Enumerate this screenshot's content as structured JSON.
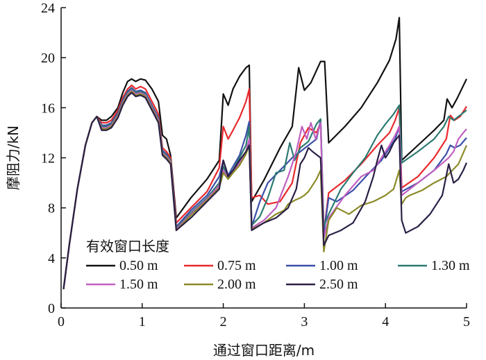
{
  "chart_data": {
    "type": "line",
    "xlabel": "通过窗口距离/m",
    "ylabel": "摩阻力/kN",
    "xlim": [
      0,
      5
    ],
    "ylim": [
      0,
      24
    ],
    "xticks": [
      "0",
      "1",
      "2",
      "3",
      "4",
      "5"
    ],
    "yticks": [
      "0",
      "4",
      "8",
      "12",
      "16",
      "20",
      "24"
    ],
    "grid": false,
    "legend": {
      "title": "有效窗口长度",
      "placement": "bottom-center",
      "columns": 4
    },
    "series": [
      {
        "name": "0.50 m",
        "color": "#111111",
        "x": [
          0.03,
          0.1,
          0.2,
          0.3,
          0.38,
          0.44,
          0.5,
          0.56,
          0.62,
          0.7,
          0.76,
          0.82,
          0.87,
          0.92,
          0.98,
          1.04,
          1.12,
          1.2,
          1.25,
          1.3,
          1.35,
          1.42,
          1.6,
          1.8,
          1.95,
          2.0,
          2.06,
          2.12,
          2.2,
          2.28,
          2.32,
          2.35,
          2.5,
          2.7,
          2.85,
          2.93,
          3.0,
          3.08,
          3.2,
          3.25,
          3.3,
          3.5,
          3.7,
          3.9,
          4.05,
          4.13,
          4.17,
          4.2,
          4.4,
          4.6,
          4.72,
          4.76,
          4.82,
          4.88,
          4.94,
          5.0
        ],
        "y": [
          1.5,
          5,
          9.5,
          13,
          14.8,
          15.3,
          15,
          15,
          15.3,
          16,
          17.2,
          18.1,
          18.3,
          18.1,
          18.3,
          18.2,
          17.5,
          16.5,
          13.8,
          13.5,
          12.2,
          7.2,
          8.8,
          10.3,
          11.8,
          17.1,
          16.2,
          17.5,
          18.5,
          19.2,
          19.4,
          8.5,
          10.2,
          12.8,
          14.5,
          19.2,
          17.4,
          18,
          19.7,
          19.7,
          13.2,
          14.5,
          16,
          18,
          19.8,
          21.5,
          23.2,
          11.8,
          13,
          14.2,
          15,
          16.7,
          16,
          16.7,
          17.5,
          18.3
        ]
      },
      {
        "name": "0.75 m",
        "color": "#e8292c",
        "x": [
          0.03,
          0.1,
          0.2,
          0.3,
          0.38,
          0.44,
          0.5,
          0.56,
          0.62,
          0.7,
          0.76,
          0.82,
          0.87,
          0.92,
          0.98,
          1.04,
          1.12,
          1.2,
          1.25,
          1.3,
          1.35,
          1.42,
          1.6,
          1.8,
          1.95,
          2.0,
          2.06,
          2.12,
          2.2,
          2.28,
          2.32,
          2.35,
          2.45,
          2.55,
          2.7,
          2.85,
          2.95,
          3.05,
          3.15,
          3.2,
          3.24,
          3.3,
          3.5,
          3.7,
          3.9,
          4.05,
          4.12,
          4.17,
          4.2,
          4.4,
          4.6,
          4.75,
          4.8,
          4.85,
          4.92,
          5.0
        ],
        "y": [
          1.5,
          5,
          9.5,
          13,
          14.8,
          15.3,
          14.8,
          14.8,
          15,
          15.8,
          16.8,
          17.5,
          17.8,
          17.5,
          17.7,
          17.5,
          16.5,
          15.5,
          12.8,
          12.5,
          12,
          6.8,
          8,
          9.3,
          11.2,
          14.5,
          13.5,
          14.2,
          15.2,
          16.5,
          17.5,
          8.8,
          9,
          8.3,
          8.5,
          10,
          13.2,
          14.4,
          14,
          14.8,
          6,
          9.2,
          10.2,
          11.5,
          13,
          14,
          15,
          16,
          9.6,
          10.5,
          12,
          13.5,
          15.4,
          15,
          15.3,
          16.1
        ]
      },
      {
        "name": "1.00 m",
        "color": "#3a4ea8",
        "x": [
          0.03,
          0.1,
          0.2,
          0.3,
          0.38,
          0.44,
          0.5,
          0.56,
          0.62,
          0.7,
          0.76,
          0.82,
          0.87,
          0.92,
          0.98,
          1.04,
          1.12,
          1.2,
          1.25,
          1.3,
          1.35,
          1.42,
          1.6,
          1.8,
          1.95,
          2.0,
          2.06,
          2.12,
          2.2,
          2.28,
          2.32,
          2.35,
          2.45,
          2.55,
          2.7,
          2.85,
          2.95,
          3.05,
          3.15,
          3.2,
          3.24,
          3.3,
          3.4,
          3.6,
          3.8,
          3.95,
          4.05,
          4.12,
          4.17,
          4.2,
          4.4,
          4.6,
          4.75,
          4.8,
          4.85,
          4.92,
          5.0
        ],
        "y": [
          1.5,
          5,
          9.5,
          13,
          14.8,
          15.3,
          14.6,
          14.6,
          14.8,
          15.6,
          16.6,
          17.3,
          17.6,
          17.3,
          17.4,
          17.2,
          16.2,
          15.2,
          12.6,
          12.3,
          11.8,
          6.5,
          7.8,
          9,
          10.5,
          11.8,
          10.6,
          11.3,
          12.2,
          13.8,
          14.9,
          6.5,
          8.5,
          10,
          11,
          12,
          12.5,
          13,
          13.5,
          15,
          6,
          8.8,
          8.5,
          9.4,
          10.8,
          11.8,
          12.8,
          13.5,
          14.5,
          9.3,
          10,
          11,
          12.3,
          13,
          12.8,
          13,
          13.6
        ]
      },
      {
        "name": "1.30 m",
        "color": "#2c7a72",
        "x": [
          0.03,
          0.1,
          0.2,
          0.3,
          0.38,
          0.44,
          0.5,
          0.56,
          0.62,
          0.7,
          0.76,
          0.82,
          0.87,
          0.92,
          0.98,
          1.04,
          1.12,
          1.2,
          1.25,
          1.3,
          1.35,
          1.42,
          1.6,
          1.8,
          1.95,
          2.0,
          2.06,
          2.12,
          2.2,
          2.28,
          2.32,
          2.35,
          2.45,
          2.55,
          2.65,
          2.75,
          2.82,
          2.88,
          2.95,
          3.05,
          3.15,
          3.2,
          3.24,
          3.3,
          3.45,
          3.6,
          3.75,
          3.9,
          4.0,
          4.1,
          4.17,
          4.2,
          4.4,
          4.6,
          4.72,
          4.78,
          4.84,
          4.9,
          5.0
        ],
        "y": [
          1.5,
          5,
          9.5,
          13,
          14.8,
          15.3,
          14.5,
          14.5,
          14.7,
          15.5,
          16.5,
          17.2,
          17.5,
          17.2,
          17.3,
          17.1,
          16.1,
          15.1,
          12.5,
          12.2,
          11.8,
          6.4,
          7.6,
          8.8,
          10,
          11.3,
          10.5,
          11,
          12,
          13,
          14.5,
          6.6,
          7.3,
          8.8,
          10.8,
          11,
          13.2,
          11.8,
          12.8,
          13.3,
          14.7,
          15.1,
          6.5,
          7.5,
          9.5,
          10.8,
          12,
          13.8,
          14.7,
          15.5,
          16.2,
          11.6,
          12.5,
          13.5,
          14.5,
          15.3,
          15,
          15.3,
          15.8
        ]
      },
      {
        "name": "1.50 m",
        "color": "#c060c0",
        "x": [
          0.03,
          0.1,
          0.2,
          0.3,
          0.38,
          0.44,
          0.5,
          0.56,
          0.62,
          0.7,
          0.76,
          0.82,
          0.87,
          0.92,
          0.98,
          1.04,
          1.12,
          1.2,
          1.25,
          1.3,
          1.35,
          1.42,
          1.6,
          1.8,
          1.95,
          2.0,
          2.06,
          2.12,
          2.2,
          2.28,
          2.32,
          2.35,
          2.5,
          2.65,
          2.8,
          2.9,
          2.97,
          3.03,
          3.08,
          3.14,
          3.2,
          3.24,
          3.3,
          3.5,
          3.7,
          3.85,
          3.95,
          4.05,
          4.12,
          4.17,
          4.2,
          4.4,
          4.6,
          4.78,
          4.84,
          4.9,
          4.96,
          5.0
        ],
        "y": [
          1.5,
          5,
          9.5,
          13,
          14.8,
          15.3,
          14.4,
          14.4,
          14.6,
          15.4,
          16.4,
          17.1,
          17.4,
          17.1,
          17.2,
          17,
          16,
          15,
          12.4,
          12.1,
          11.7,
          6.3,
          7.5,
          8.7,
          9.8,
          11,
          10.4,
          10.9,
          11.6,
          12.5,
          13.5,
          6.4,
          7,
          8,
          10.5,
          12.5,
          14.5,
          13.5,
          14.8,
          13.5,
          14.8,
          5.6,
          7.2,
          9,
          10.5,
          11,
          12,
          13,
          13.8,
          14.5,
          9,
          10,
          11,
          12,
          12.5,
          13.5,
          14,
          14.3
        ]
      },
      {
        "name": "2.00 m",
        "color": "#8a8a28",
        "x": [
          0.03,
          0.1,
          0.2,
          0.3,
          0.38,
          0.44,
          0.5,
          0.56,
          0.62,
          0.7,
          0.76,
          0.82,
          0.87,
          0.92,
          0.98,
          1.04,
          1.12,
          1.2,
          1.25,
          1.3,
          1.35,
          1.42,
          1.6,
          1.8,
          1.95,
          2.0,
          2.06,
          2.12,
          2.2,
          2.28,
          2.32,
          2.35,
          2.5,
          2.65,
          2.75,
          2.8,
          2.88,
          2.95,
          3.0,
          3.05,
          3.1,
          3.15,
          3.2,
          3.24,
          3.3,
          3.4,
          3.55,
          3.7,
          3.85,
          4.0,
          4.1,
          4.17,
          4.2,
          4.25,
          4.3,
          4.45,
          4.6,
          4.75,
          4.9,
          5.0
        ],
        "y": [
          1.5,
          5,
          9.5,
          13,
          14.8,
          15.3,
          14.3,
          14.3,
          14.5,
          15.3,
          16.3,
          17,
          17.3,
          17,
          17.1,
          16.9,
          15.9,
          14.9,
          12.3,
          12,
          11.6,
          6.2,
          7.4,
          8.6,
          9.6,
          10.8,
          10.3,
          10.8,
          11.4,
          12.3,
          13,
          6.3,
          6.8,
          7.5,
          7.8,
          8.3,
          8.6,
          8.8,
          9,
          9.3,
          9.8,
          10.3,
          11,
          4.5,
          7,
          8,
          7.5,
          8.2,
          8.5,
          9,
          9.5,
          11,
          8.3,
          8.8,
          9,
          9.4,
          10,
          10.5,
          11.5,
          13
        ]
      },
      {
        "name": "2.50 m",
        "color": "#2a1f45",
        "x": [
          0.03,
          0.1,
          0.2,
          0.3,
          0.38,
          0.44,
          0.5,
          0.56,
          0.62,
          0.7,
          0.76,
          0.82,
          0.87,
          0.92,
          0.98,
          1.04,
          1.12,
          1.2,
          1.25,
          1.3,
          1.35,
          1.42,
          1.6,
          1.8,
          1.95,
          2.0,
          2.06,
          2.12,
          2.2,
          2.28,
          2.32,
          2.35,
          2.5,
          2.65,
          2.8,
          2.9,
          2.95,
          3.0,
          3.05,
          3.1,
          3.2,
          3.24,
          3.3,
          3.45,
          3.6,
          3.75,
          3.85,
          3.9,
          3.95,
          4.0,
          4.05,
          4.1,
          4.17,
          4.2,
          4.25,
          4.4,
          4.55,
          4.7,
          4.78,
          4.84,
          4.9,
          4.96,
          5.0
        ],
        "y": [
          1.5,
          5,
          9.5,
          13,
          14.8,
          15.3,
          14.2,
          14.2,
          14.4,
          15.2,
          16.2,
          16.9,
          17.2,
          16.9,
          17,
          16.8,
          15.8,
          14.8,
          12.2,
          11.9,
          11.5,
          6.2,
          7.2,
          8.5,
          9.5,
          11.8,
          10.5,
          11,
          11.8,
          12.5,
          13,
          6.2,
          6.8,
          7.2,
          8,
          9.5,
          11.5,
          12,
          12.8,
          12.5,
          12,
          5,
          5.8,
          6.2,
          6.8,
          8.5,
          10.5,
          11.8,
          13,
          12,
          12.5,
          13.2,
          13.8,
          7,
          6,
          6.5,
          7.5,
          9,
          11.5,
          10,
          10.3,
          11,
          11.6
        ]
      }
    ]
  }
}
